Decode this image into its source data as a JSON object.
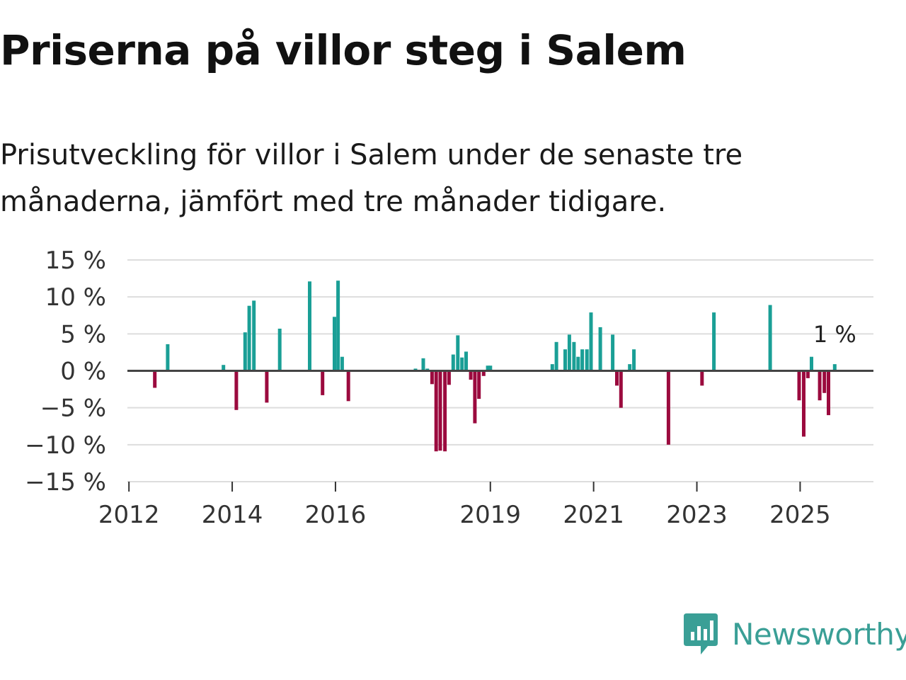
{
  "title": "Priserna på villor steg i Salem",
  "subtitle": "Prisutveckling för villor i Salem under de senaste tre månaderna, jämfört med tre månader tidigare.",
  "brand": {
    "name": "Newsworthy",
    "color": "#3a9f96",
    "icon": "newsworthy-logo-icon"
  },
  "colors": {
    "positive": "#1a9f96",
    "negative": "#9b0a3e",
    "grid": "#dddddd",
    "zero_line": "#444444"
  },
  "chart_data": {
    "type": "bar",
    "ylabel": "",
    "xlabel": "",
    "ylim": [
      -15,
      15
    ],
    "yticks": [
      15,
      10,
      5,
      0,
      -5,
      -10,
      -15
    ],
    "ytick_labels": [
      "15 %",
      "10 %",
      "5 %",
      "0 %",
      "−5 %",
      "−10 %",
      "−15 %"
    ],
    "xticks": [
      2012,
      2014,
      2016,
      2019,
      2021,
      2023,
      2025
    ],
    "xtick_labels": [
      "2012",
      "2014",
      "2016",
      "2019",
      "2021",
      "2023",
      "2025"
    ],
    "xlim": [
      2011.97,
      2026.42
    ],
    "annotation": {
      "text": "1 %",
      "x": 2025.67,
      "y": 1
    },
    "x": [
      2012.5,
      2012.75,
      2013.83,
      2014.08,
      2014.25,
      2014.33,
      2014.42,
      2014.67,
      2014.92,
      2015.5,
      2015.75,
      2015.98,
      2016.05,
      2016.13,
      2016.25,
      2017.55,
      2017.7,
      2017.78,
      2017.87,
      2017.95,
      2018.03,
      2018.12,
      2018.2,
      2018.28,
      2018.37,
      2018.45,
      2018.53,
      2018.62,
      2018.7,
      2018.78,
      2018.87,
      2018.95,
      2019.0,
      2020.2,
      2020.28,
      2020.45,
      2020.53,
      2020.62,
      2020.7,
      2020.78,
      2020.87,
      2020.95,
      2021.13,
      2021.37,
      2021.45,
      2021.53,
      2021.7,
      2021.78,
      2022.45,
      2023.1,
      2023.33,
      2024.42,
      2024.98,
      2025.07,
      2025.15,
      2025.22,
      2025.38,
      2025.47,
      2025.55,
      2025.67
    ],
    "values": [
      -2.3,
      3.6,
      0.8,
      -5.3,
      5.2,
      8.8,
      9.5,
      -4.3,
      5.7,
      12.1,
      -3.3,
      7.3,
      12.2,
      1.9,
      -4.1,
      0.3,
      1.7,
      0.3,
      -1.8,
      -10.9,
      -10.8,
      -10.9,
      -1.9,
      2.2,
      4.8,
      1.8,
      2.6,
      -1.2,
      -7.1,
      -3.8,
      -0.7,
      0.7,
      0.7,
      0.9,
      3.9,
      2.9,
      4.9,
      3.9,
      1.9,
      2.9,
      2.9,
      7.9,
      5.9,
      4.9,
      -2.0,
      -5.0,
      0.9,
      2.9,
      -10.0,
      -2.0,
      7.9,
      8.9,
      -4.0,
      -8.9,
      -1.0,
      1.9,
      -4.0,
      -3.0,
      -6.0,
      0.9
    ]
  }
}
